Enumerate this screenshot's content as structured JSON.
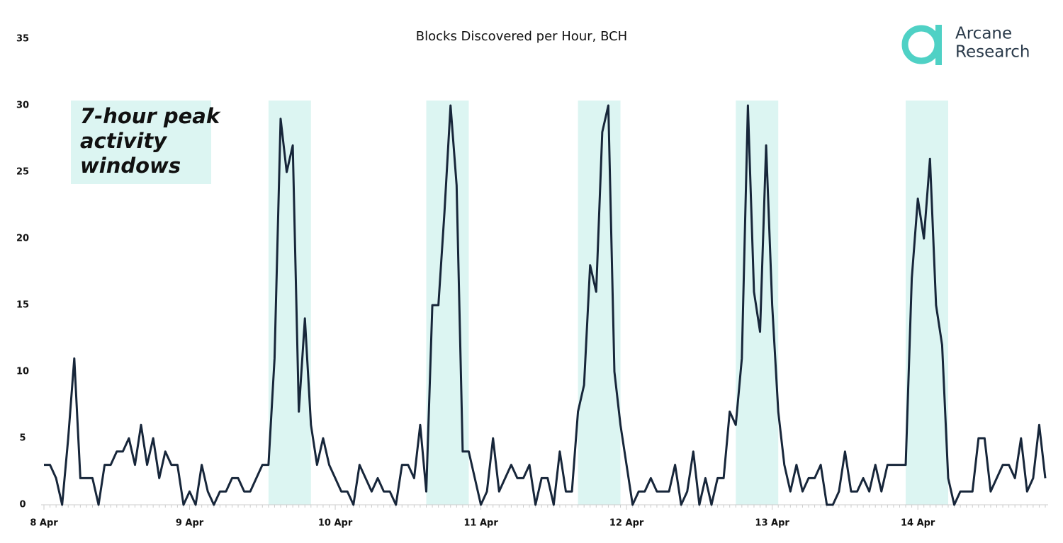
{
  "chart_data": {
    "type": "line",
    "title": "Blocks Discovered per Hour, BCH",
    "logo": [
      "Arcane",
      "Research"
    ],
    "annotation": [
      "7-hour peak",
      "activity",
      "windows"
    ],
    "categories": [
      "8 Apr",
      null,
      null,
      null,
      null,
      null,
      null,
      null,
      null,
      null,
      null,
      null,
      null,
      null,
      null,
      null,
      null,
      null,
      null,
      null,
      null,
      null,
      null,
      null,
      "9 Apr",
      null,
      null,
      null,
      null,
      null,
      null,
      null,
      null,
      null,
      null,
      null,
      null,
      null,
      null,
      null,
      null,
      null,
      null,
      null,
      null,
      null,
      null,
      null,
      "10 Apr",
      null,
      null,
      null,
      null,
      null,
      null,
      null,
      null,
      null,
      null,
      null,
      null,
      null,
      null,
      null,
      null,
      null,
      null,
      null,
      null,
      null,
      null,
      null,
      "11 Apr",
      null,
      null,
      null,
      null,
      null,
      null,
      null,
      null,
      null,
      null,
      null,
      null,
      null,
      null,
      null,
      null,
      null,
      null,
      null,
      null,
      null,
      null,
      null,
      "12 Apr",
      null,
      null,
      null,
      null,
      null,
      null,
      null,
      null,
      null,
      null,
      null,
      null,
      null,
      null,
      null,
      null,
      null,
      null,
      null,
      null,
      null,
      null,
      null,
      "13 Apr",
      null,
      null,
      null,
      null,
      null,
      null,
      null,
      null,
      null,
      null,
      null,
      null,
      null,
      null,
      null,
      null,
      null,
      null,
      null,
      null,
      null,
      null,
      null,
      "14 Apr",
      null,
      null,
      null,
      null,
      null,
      null,
      null,
      null,
      null,
      null,
      null,
      null,
      null,
      null,
      null,
      null,
      null,
      null,
      null,
      null,
      null
    ],
    "series": [
      {
        "name": "Blocks",
        "color": "#17263a",
        "values": [
          3,
          3,
          2,
          0,
          5,
          11,
          2,
          2,
          2,
          0,
          3,
          3,
          4,
          4,
          5,
          3,
          6,
          3,
          5,
          2,
          4,
          3,
          3,
          0,
          1,
          0,
          3,
          1,
          0,
          1,
          1,
          2,
          2,
          1,
          1,
          2,
          3,
          3,
          11,
          29,
          25,
          27,
          7,
          14,
          6,
          3,
          5,
          3,
          2,
          1,
          1,
          0,
          3,
          2,
          1,
          2,
          1,
          1,
          0,
          3,
          3,
          2,
          6,
          1,
          15,
          15,
          22,
          30,
          24,
          4,
          4,
          2,
          0,
          1,
          5,
          1,
          2,
          3,
          2,
          2,
          3,
          0,
          2,
          2,
          0,
          4,
          1,
          1,
          7,
          9,
          18,
          16,
          28,
          30,
          10,
          6,
          3,
          0,
          1,
          1,
          2,
          1,
          1,
          1,
          3,
          0,
          1,
          4,
          0,
          2,
          0,
          2,
          2,
          7,
          6,
          11,
          30,
          16,
          13,
          27,
          15,
          7,
          3,
          1,
          3,
          1,
          2,
          2,
          3,
          0,
          0,
          1,
          4,
          1,
          1,
          2,
          1,
          3,
          1,
          3,
          3,
          3,
          3,
          17,
          23,
          20,
          26,
          15,
          12,
          2,
          0,
          1,
          1,
          1,
          5,
          5,
          1,
          2,
          3,
          3,
          2,
          5,
          1,
          2,
          6,
          2
        ]
      }
    ],
    "highlight_windows": [
      [
        37,
        44
      ],
      [
        63,
        70
      ],
      [
        88,
        95
      ],
      [
        114,
        121
      ],
      [
        142,
        149
      ]
    ],
    "highlight_color": "#dcf5f2",
    "ylim": [
      0,
      35
    ],
    "yticks": [
      0,
      5,
      10,
      15,
      20,
      25,
      30,
      35
    ]
  }
}
